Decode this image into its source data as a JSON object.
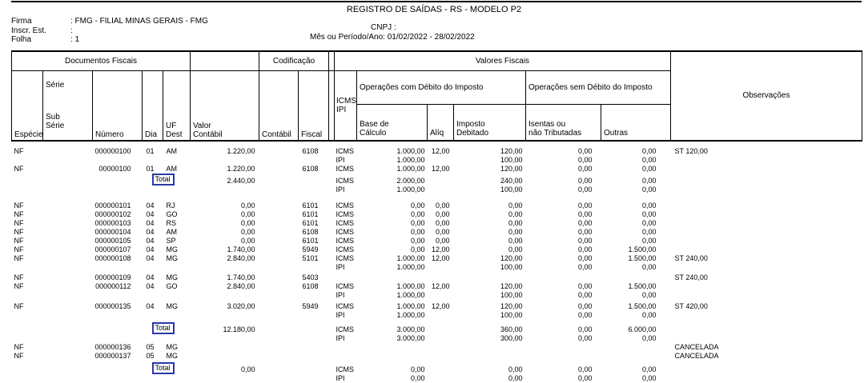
{
  "highlight": {
    "color": "#2b38a8"
  },
  "page_header": {
    "title": "REGISTRO DE SAÍDAS - RS - MODELO P2",
    "fields_left": [
      {
        "label": "Firma",
        "value": ": FMG - FILIAL MINAS GERAIS - FMG"
      },
      {
        "label": "Inscr. Est.",
        "value": ":"
      },
      {
        "label": "Folha",
        "value": ": 1"
      }
    ],
    "cnpj_label": "CNPJ :",
    "cnpj_value": "",
    "period_label": "Mês ou Período/Ano:",
    "period_value": "01/02/2022 - 28/02/2022"
  },
  "table": {
    "groups": {
      "documentos_fiscais": "Documentos Fiscais",
      "codificacao": "Codificação",
      "valores_fiscais": "Valores Fiscais",
      "op_com_debito": "Operações com Débito do Imposto",
      "op_sem_debito": "Operações sem Débito do Imposto"
    },
    "columns": {
      "especie": "Espécie",
      "serie_top": "Série",
      "serie_bottom": "Sub\nSérie",
      "numero": "Número",
      "dia": "Dia",
      "uf_dest": "UF\nDest",
      "valor_contabil": "Valor\nContábil",
      "contabil": "Contábil",
      "fiscal": "Fiscal",
      "icms_ipi": "ICMS\nIPI",
      "base_calculo": "Base de\nCálculo",
      "aliq": "Alíq",
      "imposto_debitado": "Imposto\nDebitado",
      "isentas": "Isentas ou\nnão Tributadas",
      "outras": "Outras",
      "observacoes": "Observações"
    },
    "rows": [
      {
        "spacer": 8
      },
      {
        "especie": "NF",
        "numero": "000000100",
        "dia": "01",
        "uf": "AM",
        "valor": "1.220,00",
        "fiscal": "6108",
        "tax": "ICMS",
        "base": "1.000,00",
        "aliq": "12,00",
        "imposto": "120,00",
        "isentas": "0,00",
        "outras": "0,00",
        "obs": "ST 120,00"
      },
      {
        "tax": "IPI",
        "base": "1.000,00",
        "imposto": "100,00",
        "isentas": "0,00",
        "outras": "0,00"
      },
      {
        "especie": "NF",
        "numero": "00000100",
        "dia": "01",
        "uf": "AM",
        "valor": "1.220,00",
        "fiscal": "6108",
        "tax": "ICMS",
        "base": "1.000,00",
        "aliq": "12,00",
        "imposto": "120,00",
        "isentas": "0,00",
        "outras": "0,00"
      },
      {
        "total_label": "Total",
        "valor": "2.440,00",
        "tax": "ICMS",
        "base": "2.000,00",
        "imposto": "240,00",
        "isentas": "0,00",
        "outras": "0,00"
      },
      {
        "tax": "IPI",
        "base": "1.000,00",
        "imposto": "100,00",
        "isentas": "0,00",
        "outras": "0,00"
      },
      {
        "spacer": 9
      },
      {
        "especie": "NF",
        "numero": "000000101",
        "dia": "04",
        "uf": "RJ",
        "valor": "0,00",
        "fiscal": "6101",
        "tax": "ICMS",
        "base": "0,00",
        "aliq": "0,00",
        "imposto": "0,00",
        "isentas": "0,00",
        "outras": "0,00"
      },
      {
        "especie": "NF",
        "numero": "000000102",
        "dia": "04",
        "uf": "GO",
        "valor": "0,00",
        "fiscal": "6101",
        "tax": "ICMS",
        "base": "0,00",
        "aliq": "0,00",
        "imposto": "0,00",
        "isentas": "0,00",
        "outras": "0,00"
      },
      {
        "especie": "NF",
        "numero": "000000103",
        "dia": "04",
        "uf": "RS",
        "valor": "0,00",
        "fiscal": "6101",
        "tax": "ICMS",
        "base": "0,00",
        "aliq": "0,00",
        "imposto": "0,00",
        "isentas": "0,00",
        "outras": "0,00"
      },
      {
        "especie": "NF",
        "numero": "000000104",
        "dia": "04",
        "uf": "AM",
        "valor": "0,00",
        "fiscal": "6108",
        "tax": "ICMS",
        "base": "0,00",
        "aliq": "0,00",
        "imposto": "0,00",
        "isentas": "0,00",
        "outras": "0,00"
      },
      {
        "especie": "NF",
        "numero": "000000105",
        "dia": "04",
        "uf": "SP",
        "valor": "0,00",
        "fiscal": "6101",
        "tax": "ICMS",
        "base": "0,00",
        "aliq": "0,00",
        "imposto": "0,00",
        "isentas": "0,00",
        "outras": "0,00"
      },
      {
        "especie": "NF",
        "numero": "000000107",
        "dia": "04",
        "uf": "MG",
        "valor": "1.740,00",
        "fiscal": "5949",
        "tax": "ICMS",
        "base": "0,00",
        "aliq": "12,00",
        "imposto": "0,00",
        "isentas": "0,00",
        "outras": "1.500,00"
      },
      {
        "especie": "NF",
        "numero": "000000108",
        "dia": "04",
        "uf": "MG",
        "valor": "2.840,00",
        "fiscal": "5101",
        "tax": "ICMS",
        "base": "1.000,00",
        "aliq": "12,00",
        "imposto": "120,00",
        "isentas": "0,00",
        "outras": "1.500,00",
        "obs": "ST 240,00"
      },
      {
        "tax": "IPI",
        "base": "1.000,00",
        "imposto": "100,00",
        "isentas": "0,00",
        "outras": "0,00"
      },
      {
        "spacer": 2
      },
      {
        "especie": "NF",
        "numero": "000000109",
        "dia": "04",
        "uf": "MG",
        "valor": "1.740,00",
        "fiscal": "5403",
        "obs": "ST 240,00"
      },
      {
        "especie": "NF",
        "numero": "000000112",
        "dia": "04",
        "uf": "GO",
        "valor": "2.840,00",
        "fiscal": "6108",
        "tax": "ICMS",
        "base": "1.000,00",
        "aliq": "12,00",
        "imposto": "120,00",
        "isentas": "0,00",
        "outras": "1.500,00"
      },
      {
        "tax": "IPI",
        "base": "1.000,00",
        "imposto": "100,00",
        "isentas": "0,00",
        "outras": "0,00"
      },
      {
        "spacer": 3
      },
      {
        "especie": "NF",
        "numero": "000000135",
        "dia": "04",
        "uf": "MG",
        "valor": "3.020,00",
        "fiscal": "5949",
        "tax": "ICMS",
        "base": "1.000,00",
        "aliq": "12,00",
        "imposto": "120,00",
        "isentas": "0,00",
        "outras": "1.500,00",
        "obs": "ST 420,00"
      },
      {
        "tax": "IPI",
        "base": "1.000,00",
        "imposto": "100,00",
        "isentas": "0,00",
        "outras": "0,00"
      },
      {
        "spacer": 3
      },
      {
        "total_label": "Total",
        "valor": "12.180,00",
        "tax": "ICMS",
        "base": "3.000,00",
        "imposto": "360,00",
        "isentas": "0,00",
        "outras": "6.000,00"
      },
      {
        "tax": "IPI",
        "base": "3.000,00",
        "imposto": "300,00",
        "isentas": "0,00",
        "outras": "0,00"
      },
      {
        "especie": "NF",
        "numero": "000000136",
        "dia": "05",
        "uf": "MG",
        "obs": "CANCELADA"
      },
      {
        "especie": "NF",
        "numero": "000000137",
        "dia": "05",
        "uf": "MG",
        "obs": "CANCELADA"
      },
      {
        "spacer": 2
      },
      {
        "total_label": "Total",
        "valor": "0,00",
        "tax": "ICMS",
        "base": "0,00",
        "imposto": "0,00",
        "isentas": "0,00",
        "outras": "0,00"
      },
      {
        "tax": "IPI",
        "base": "0,00",
        "imposto": "0,00",
        "isentas": "0,00",
        "outras": "0,00"
      }
    ]
  }
}
